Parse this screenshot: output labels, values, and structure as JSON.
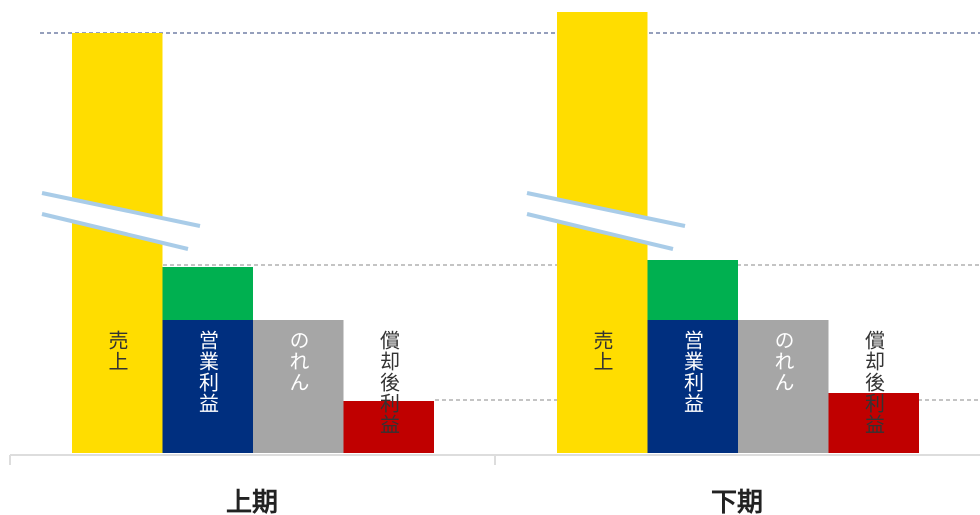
{
  "groups": [
    {
      "label": "上期",
      "bars": [
        "売上",
        "営業利益",
        "のれん",
        "償却後利益"
      ]
    },
    {
      "label": "下期",
      "bars": [
        "売上",
        "営業利益",
        "のれん",
        "償却後利益"
      ]
    }
  ]
}
